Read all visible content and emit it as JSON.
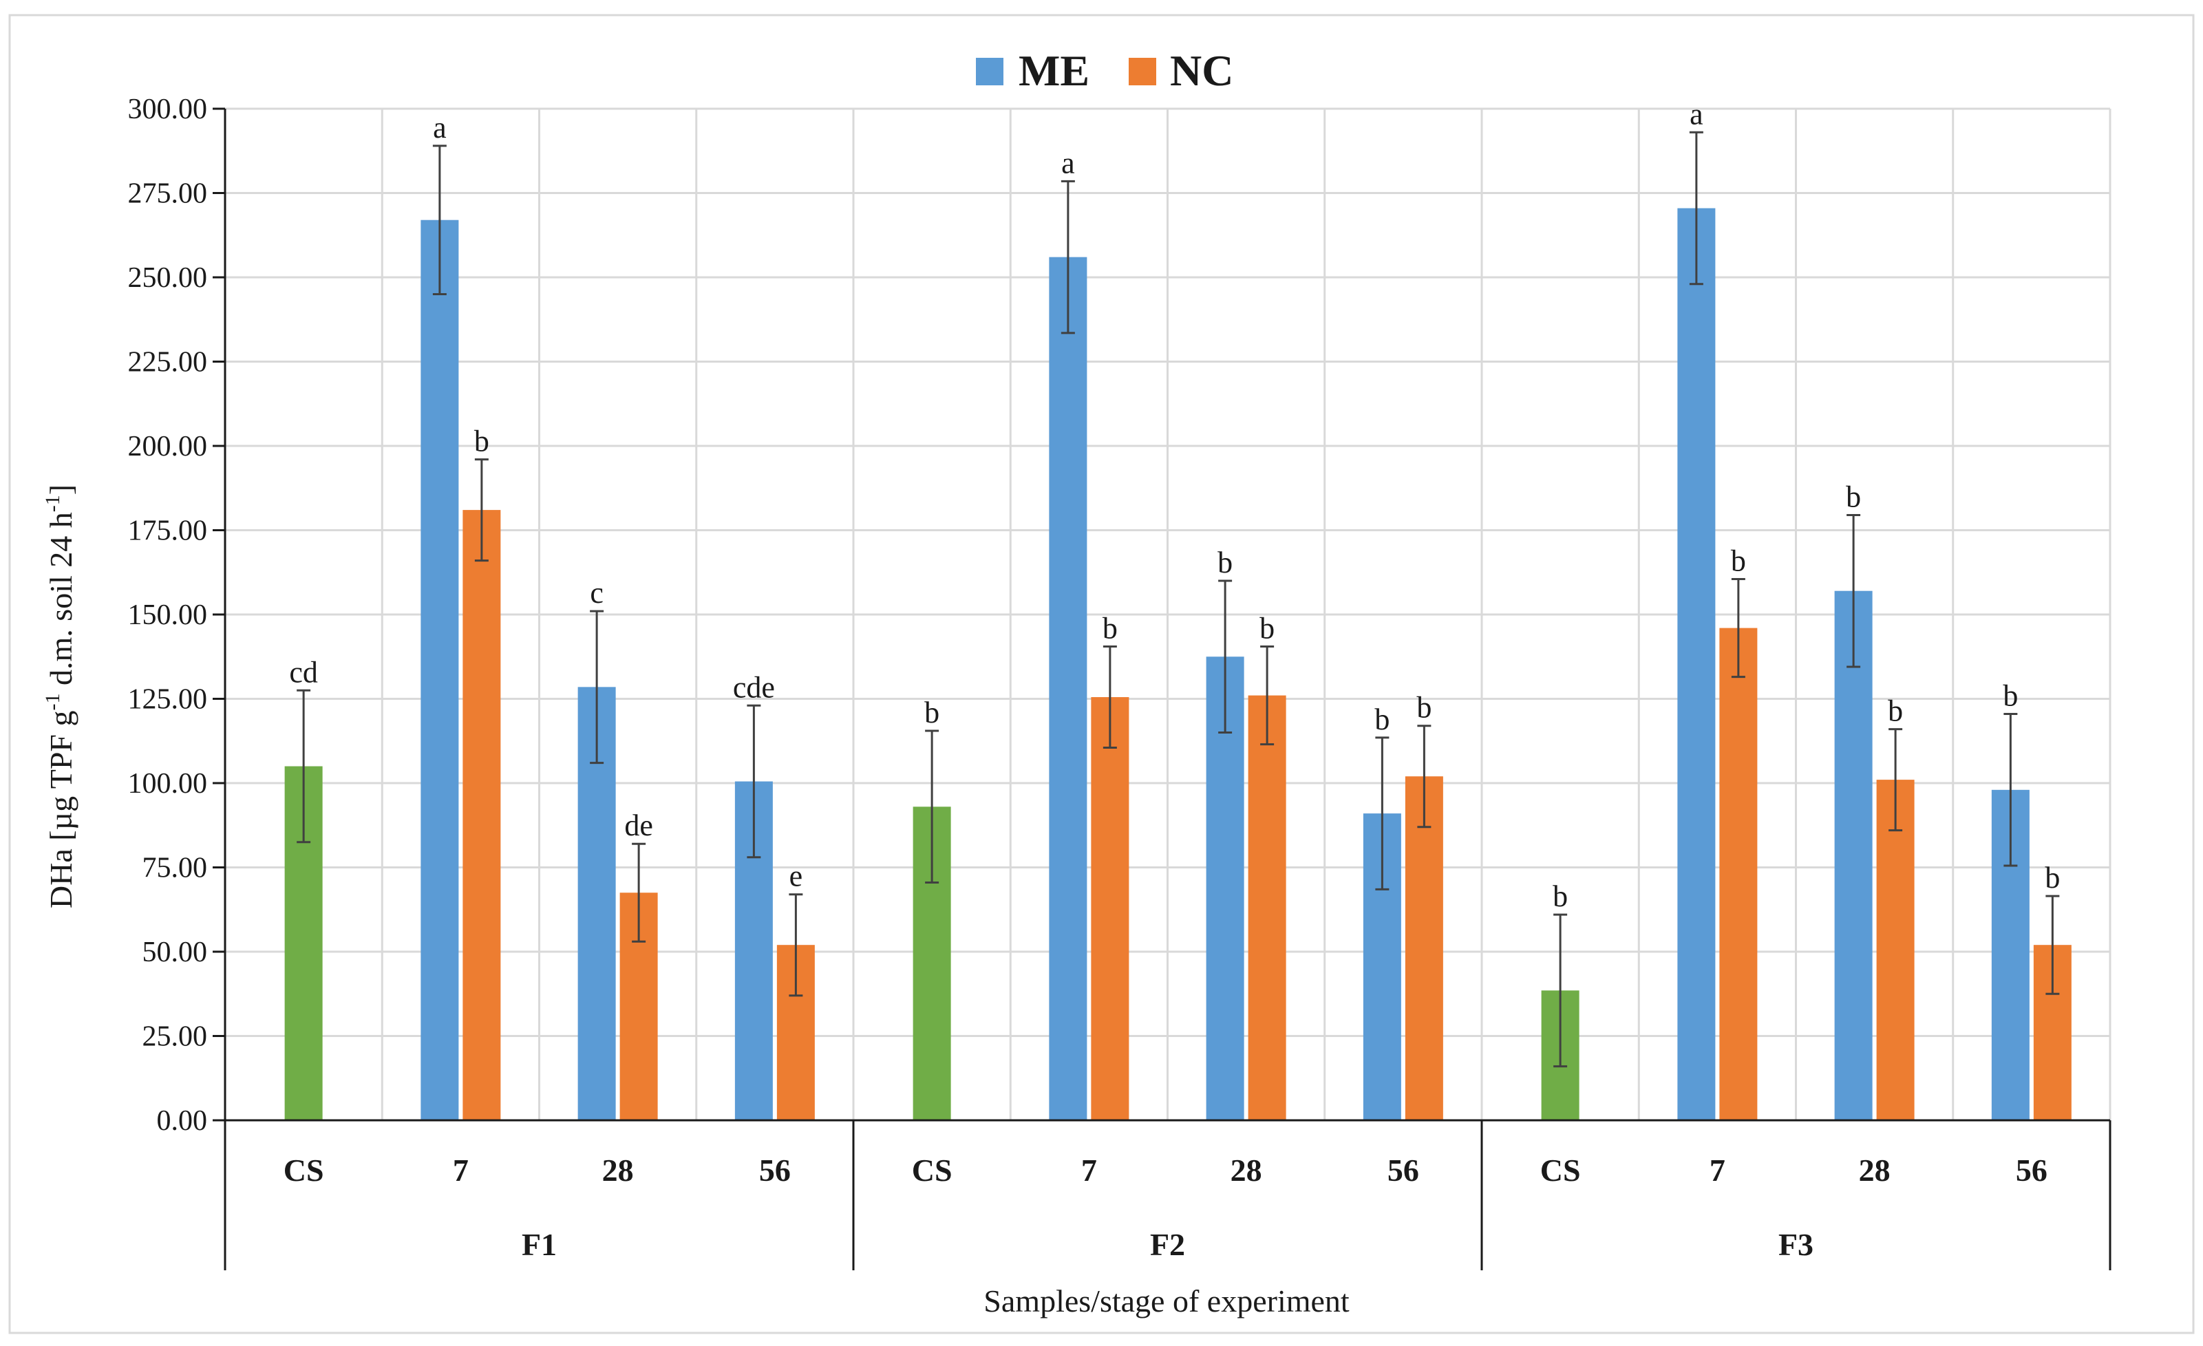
{
  "chart_data": {
    "type": "bar",
    "ylabel": "DHa [µg TPF g⁻¹ d.m. soil 24 h⁻¹]",
    "ylabel_parts": {
      "a": "DHa [µg TPF g",
      "sup1": "-1",
      "b": " d.m. soil 24 h",
      "sup2": "-1",
      "c": "]"
    },
    "xlabel": "Samples/stage of experiment",
    "ylim": [
      0,
      300
    ],
    "yticks": [
      0,
      25,
      50,
      75,
      100,
      125,
      150,
      175,
      200,
      225,
      250,
      275,
      300
    ],
    "ytick_labels": [
      "0.00",
      "25.00",
      "50.00",
      "75.00",
      "100.00",
      "125.00",
      "150.00",
      "175.00",
      "200.00",
      "225.00",
      "250.00",
      "275.00",
      "300.00"
    ],
    "grid": true,
    "legend": [
      {
        "name": "ME",
        "color": "#5B9BD5"
      },
      {
        "name": "NC",
        "color": "#ED7D31"
      }
    ],
    "control_color": "#70AD47",
    "groups": [
      {
        "name": "F1",
        "categories": [
          {
            "label": "CS",
            "bars": [
              {
                "series": "control",
                "value": 105,
                "err": 22.5,
                "sig": "cd"
              }
            ]
          },
          {
            "label": "7",
            "bars": [
              {
                "series": "ME",
                "value": 267,
                "err": 22,
                "sig": "a"
              },
              {
                "series": "NC",
                "value": 181,
                "err": 15,
                "sig": "b"
              }
            ]
          },
          {
            "label": "28",
            "bars": [
              {
                "series": "ME",
                "value": 128.5,
                "err": 22.5,
                "sig": "c"
              },
              {
                "series": "NC",
                "value": 67.5,
                "err": 14.5,
                "sig": "de"
              }
            ]
          },
          {
            "label": "56",
            "bars": [
              {
                "series": "ME",
                "value": 100.5,
                "err": 22.5,
                "sig": "cde"
              },
              {
                "series": "NC",
                "value": 52,
                "err": 15,
                "sig": "e"
              }
            ]
          }
        ]
      },
      {
        "name": "F2",
        "categories": [
          {
            "label": "CS",
            "bars": [
              {
                "series": "control",
                "value": 93,
                "err": 22.5,
                "sig": "b"
              }
            ]
          },
          {
            "label": "7",
            "bars": [
              {
                "series": "ME",
                "value": 256,
                "err": 22.5,
                "sig": "a"
              },
              {
                "series": "NC",
                "value": 125.5,
                "err": 15,
                "sig": "b"
              }
            ]
          },
          {
            "label": "28",
            "bars": [
              {
                "series": "ME",
                "value": 137.5,
                "err": 22.5,
                "sig": "b"
              },
              {
                "series": "NC",
                "value": 126,
                "err": 14.5,
                "sig": "b"
              }
            ]
          },
          {
            "label": "56",
            "bars": [
              {
                "series": "ME",
                "value": 91,
                "err": 22.5,
                "sig": "b"
              },
              {
                "series": "NC",
                "value": 102,
                "err": 15,
                "sig": "b"
              }
            ]
          }
        ]
      },
      {
        "name": "F3",
        "categories": [
          {
            "label": "CS",
            "bars": [
              {
                "series": "control",
                "value": 38.5,
                "err": 22.5,
                "sig": "b"
              }
            ]
          },
          {
            "label": "7",
            "bars": [
              {
                "series": "ME",
                "value": 270.5,
                "err": 22.5,
                "sig": "a"
              },
              {
                "series": "NC",
                "value": 146,
                "err": 14.5,
                "sig": "b"
              }
            ]
          },
          {
            "label": "28",
            "bars": [
              {
                "series": "ME",
                "value": 157,
                "err": 22.5,
                "sig": "b"
              },
              {
                "series": "NC",
                "value": 101,
                "err": 15,
                "sig": "b"
              }
            ]
          },
          {
            "label": "56",
            "bars": [
              {
                "series": "ME",
                "value": 98,
                "err": 22.5,
                "sig": "b"
              },
              {
                "series": "NC",
                "value": 52,
                "err": 14.5,
                "sig": "b"
              }
            ]
          }
        ]
      }
    ]
  }
}
